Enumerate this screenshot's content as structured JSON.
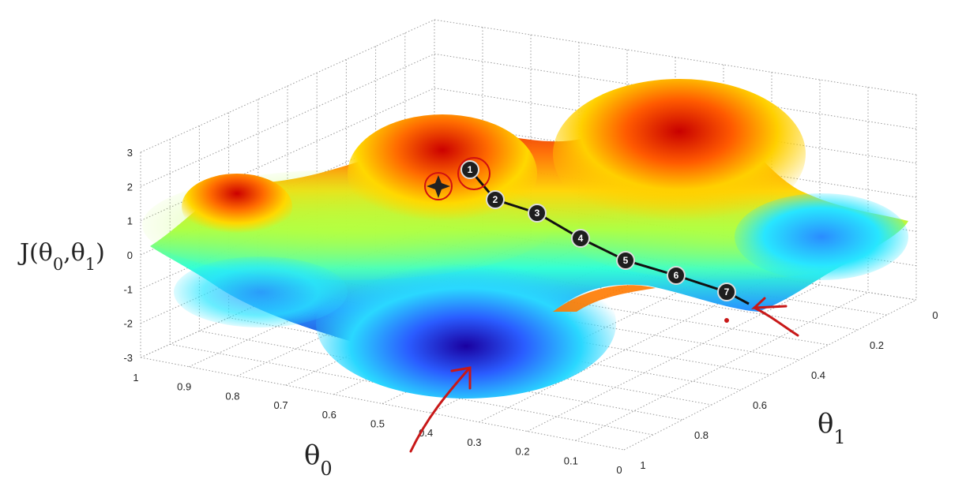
{
  "chart_data": {
    "type": "surface",
    "z_label": "J(θ0,θ1)",
    "x_label": "θ0",
    "y_label": "θ1",
    "z_ticks": [
      "3",
      "2",
      "1",
      "0",
      "-1",
      "-2",
      "-3"
    ],
    "x_ticks": [
      "1",
      "0.9",
      "0.8",
      "0.7",
      "0.6",
      "0.5",
      "0.4",
      "0.3",
      "0.2",
      "0.1",
      "0"
    ],
    "y_ticks": [
      "0",
      "0.2",
      "0.4",
      "0.6",
      "0.8",
      "1"
    ],
    "zlim": [
      -3,
      3
    ],
    "xlim": [
      1,
      0
    ],
    "ylim": [
      0,
      1
    ],
    "grid": true,
    "colormap": "jet",
    "gradient_descent_path": {
      "steps": [
        "1",
        "2",
        "3",
        "4",
        "5",
        "6",
        "7"
      ],
      "start_marker": "star-in-circle",
      "end_annotation": "red-arrow"
    },
    "minimum_annotation": "red-arrow"
  }
}
